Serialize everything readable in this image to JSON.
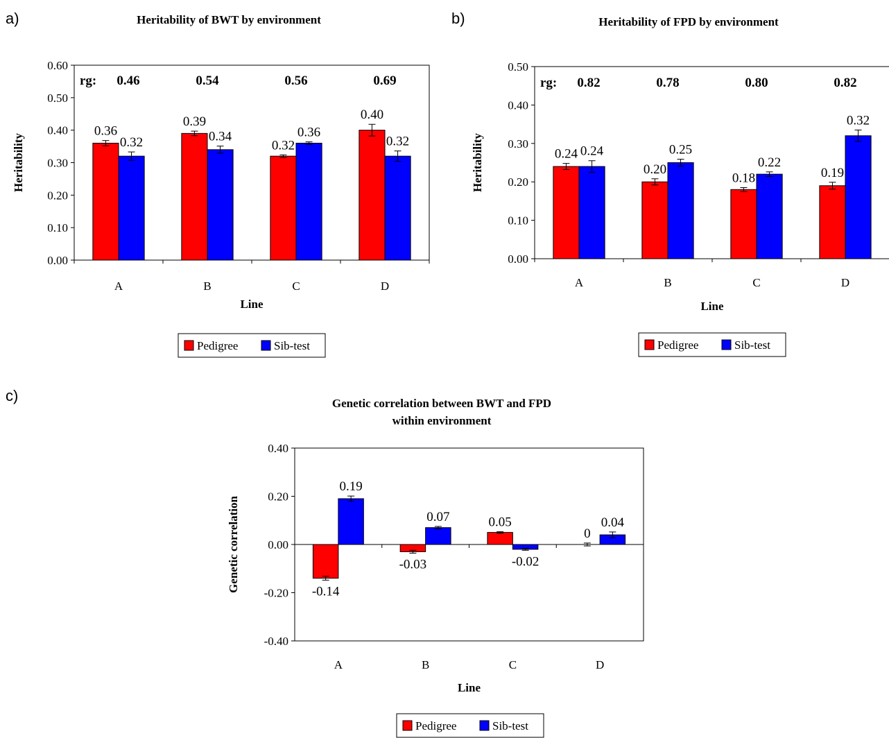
{
  "panel_tags": {
    "a": "a)",
    "b": "b)",
    "c": "c)"
  },
  "colors": {
    "pedigree": "#ff0000",
    "sibtest": "#0000ff"
  },
  "chart_data": [
    {
      "type": "bar",
      "title": "Heritability of BWT by environment",
      "xlabel": "Line",
      "ylabel": "Heritability",
      "categories": [
        "A",
        "B",
        "C",
        "D"
      ],
      "ylim": [
        0,
        0.6
      ],
      "ytick_step": 0.1,
      "ytick_labels": [
        "0.00",
        "0.10",
        "0.20",
        "0.30",
        "0.40",
        "0.50",
        "0.60"
      ],
      "grid": false,
      "legend_position": "bottom",
      "rg_prefix": "rg:",
      "rg_values": [
        "0.46",
        "0.54",
        "0.56",
        "0.69"
      ],
      "series": [
        {
          "name": "Pedigree",
          "values": [
            0.36,
            0.39,
            0.32,
            0.4
          ],
          "errors": [
            0.008,
            0.007,
            0.004,
            0.018
          ],
          "labels": [
            "0.36",
            "0.39",
            "0.32",
            "0.40"
          ]
        },
        {
          "name": "Sib-test",
          "values": [
            0.32,
            0.34,
            0.36,
            0.32
          ],
          "errors": [
            0.013,
            0.011,
            0.004,
            0.016
          ],
          "labels": [
            "0.32",
            "0.34",
            "0.36",
            "0.32"
          ]
        }
      ]
    },
    {
      "type": "bar",
      "title": "Heritability of FPD by environment",
      "xlabel": "Line",
      "ylabel": "Heritability",
      "categories": [
        "A",
        "B",
        "C",
        "D"
      ],
      "ylim": [
        0,
        0.5
      ],
      "ytick_step": 0.1,
      "ytick_labels": [
        "0.00",
        "0.10",
        "0.20",
        "0.30",
        "0.40",
        "0.50"
      ],
      "grid": false,
      "legend_position": "bottom",
      "rg_prefix": "rg:",
      "rg_values": [
        "0.82",
        "0.78",
        "0.80",
        "0.82"
      ],
      "series": [
        {
          "name": "Pedigree",
          "values": [
            0.24,
            0.2,
            0.18,
            0.19
          ],
          "errors": [
            0.008,
            0.008,
            0.005,
            0.009
          ],
          "labels": [
            "0.24",
            "0.20",
            "0.18",
            "0.19"
          ]
        },
        {
          "name": "Sib-test",
          "values": [
            0.24,
            0.25,
            0.22,
            0.32
          ],
          "errors": [
            0.015,
            0.009,
            0.006,
            0.015
          ],
          "labels": [
            "0.24",
            "0.25",
            "0.22",
            "0.32"
          ]
        }
      ]
    },
    {
      "type": "bar",
      "title": "Genetic correlation between BWT and FPD",
      "subtitle": "within environment",
      "xlabel": "Line",
      "ylabel": "Genetic correlation",
      "categories": [
        "A",
        "B",
        "C",
        "D"
      ],
      "ylim": [
        -0.4,
        0.4
      ],
      "ytick_step": 0.2,
      "ytick_labels": [
        "-0.40",
        "-0.20",
        "0.00",
        "0.20",
        "0.40"
      ],
      "grid": false,
      "legend_position": "bottom",
      "series": [
        {
          "name": "Pedigree",
          "values": [
            -0.14,
            -0.03,
            0.05,
            0.0
          ],
          "errors": [
            0.008,
            0.006,
            0.003,
            0.006
          ],
          "labels": [
            "-0.14",
            "-0.03",
            "0.05",
            "0"
          ]
        },
        {
          "name": "Sib-test",
          "values": [
            0.19,
            0.07,
            -0.02,
            0.04
          ],
          "errors": [
            0.011,
            0.005,
            0.004,
            0.012
          ],
          "labels": [
            "0.19",
            "0.07",
            "-0.02",
            "0.04"
          ]
        }
      ]
    }
  ]
}
